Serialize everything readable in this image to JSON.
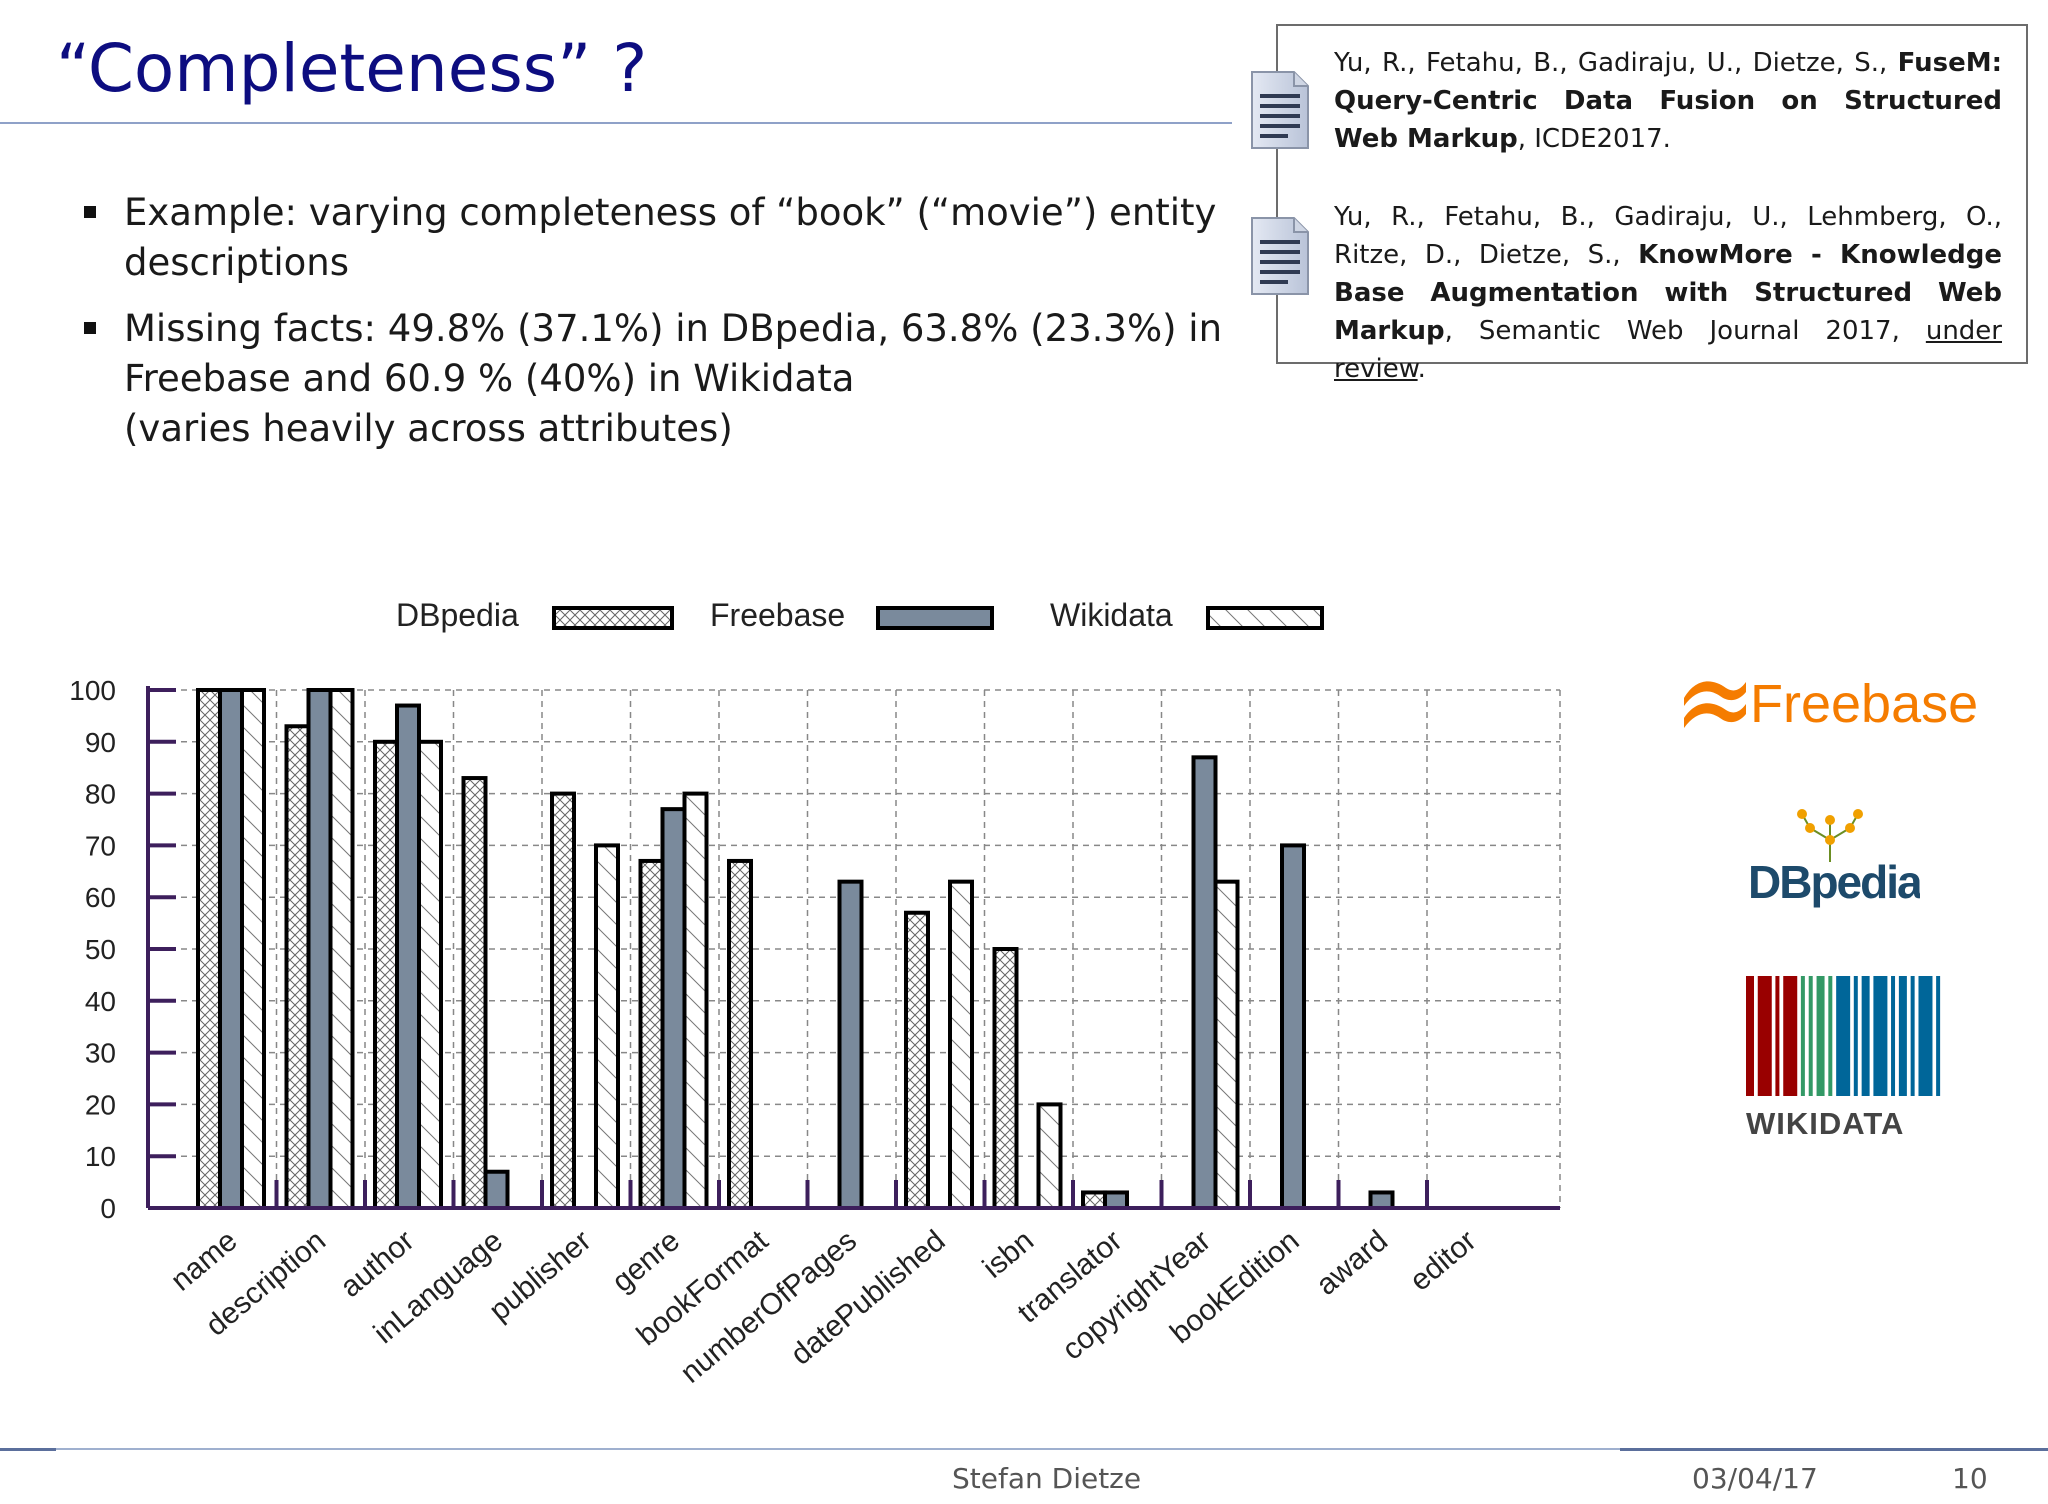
{
  "slide": {
    "title": "“Completeness” ?",
    "bullets": [
      {
        "lines": [
          "Example: varying completeness of “book” (“movie”) entity",
          "descriptions"
        ]
      },
      {
        "lines": [
          "Missing facts: 49.8% (37.1%) in DBpedia, 63.8% (23.3%) in",
          "Freebase and 60.9 % (40%) in Wikidata",
          "(varies heavily across attributes)"
        ]
      }
    ],
    "references": [
      {
        "authors": "Yu, R., Fetahu, B., Gadiraju, U., Dietze, S., ",
        "title": "FuseM: Query-Centric Data Fusion on Structured Web Markup",
        "venue": ", ICDE2017."
      },
      {
        "authors": "Yu, R., Fetahu, B., Gadiraju, U., Lehmberg, O., Ritze, D., Dietze, S., ",
        "title": "KnowMore - Knowledge Base Augmentation with Structured Web Markup",
        "venue": ", Semantic Web Journal 2017, ",
        "status": "under review",
        "end": "."
      }
    ],
    "logos": {
      "freebase": "Freebase",
      "dbpedia": "DBpedia",
      "wikidata": "WIKIDATA"
    },
    "footer": {
      "author": "Stefan Dietze",
      "date": "03/04/17",
      "page": "10"
    },
    "colors": {
      "title": "#0d0d80",
      "freebase_bar": "#7a8a9c",
      "axis": "#3d1f5c",
      "freebase_logo": "#f57c00",
      "dbpedia_logo": "#1d4a6b",
      "wikidata_red": "#990000",
      "wikidata_green": "#339966",
      "wikidata_blue": "#006699"
    }
  },
  "chart_data": {
    "type": "bar",
    "categories": [
      "name",
      "description",
      "author",
      "inLanguage",
      "publisher",
      "genre",
      "bookFormat",
      "numberOfPages",
      "datePublished",
      "isbn",
      "translator",
      "copyrightYear",
      "bookEdition",
      "award",
      "editor"
    ],
    "series": [
      {
        "name": "DBpedia",
        "values": [
          100,
          93,
          90,
          83,
          80,
          67,
          67,
          0,
          57,
          50,
          3,
          0,
          0,
          0,
          0
        ]
      },
      {
        "name": "Freebase",
        "values": [
          100,
          100,
          97,
          7,
          0,
          77,
          0,
          63,
          0,
          0,
          3,
          87,
          70,
          3,
          0
        ]
      },
      {
        "name": "Wikidata",
        "values": [
          100,
          100,
          90,
          0,
          70,
          80,
          0,
          0,
          63,
          20,
          0,
          63,
          0,
          0,
          0
        ]
      }
    ],
    "ylim": [
      0,
      100
    ],
    "yticks": [
      0,
      10,
      20,
      30,
      40,
      50,
      60,
      70,
      80,
      90,
      100
    ],
    "legend_position": "top",
    "grid": true
  }
}
